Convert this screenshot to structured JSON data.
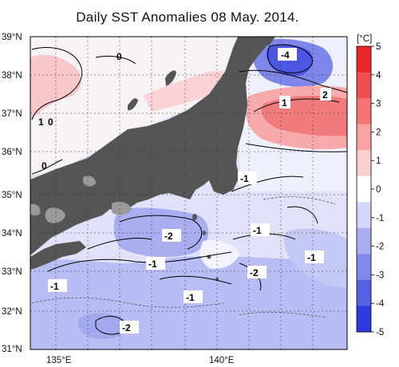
{
  "title": "Daily SST Anomalies 08 May. 2014.",
  "lat_labels": [
    "39°N",
    "38°N",
    "37°N",
    "36°N",
    "35°N",
    "34°N",
    "33°N",
    "32°N",
    "31°N"
  ],
  "lon_labels": [
    "135°E",
    "140°E"
  ],
  "colorbar": {
    "unit": "[°C]",
    "ticks": [
      "5",
      "4",
      "3",
      "2",
      "1",
      "0",
      "-1",
      "-2",
      "-3",
      "-4",
      "-5"
    ],
    "colors": [
      "#e8262b",
      "#ef4c4f",
      "#f47776",
      "#f8a2a1",
      "#fbcfcf",
      "#ffffff",
      "#d3d6f6",
      "#a9aef0",
      "#8088ea",
      "#5660e4",
      "#2c3ade"
    ]
  },
  "contour_labels": [
    "-4",
    "2",
    "1",
    "0",
    "1",
    "0",
    "0",
    "-1",
    "-2",
    "-1",
    "-1",
    "-2",
    "-1",
    "-1",
    "-1",
    "-2"
  ]
}
